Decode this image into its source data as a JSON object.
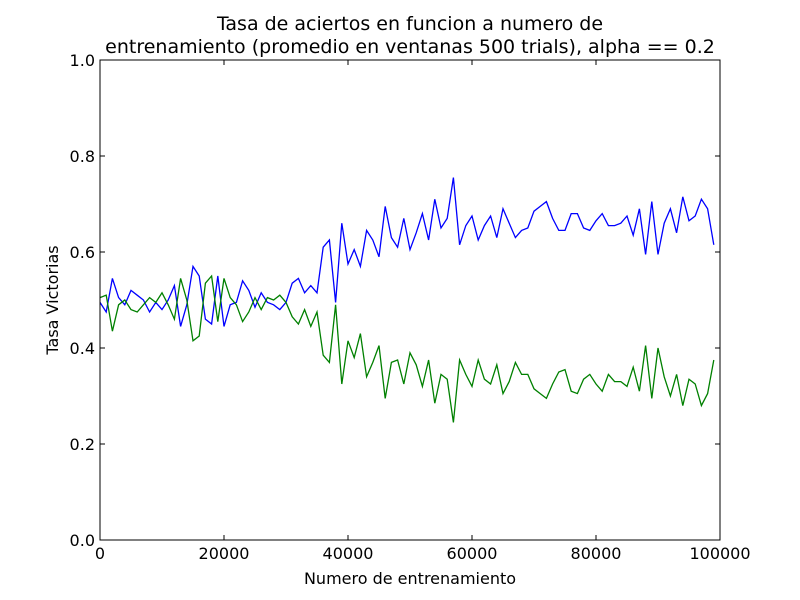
{
  "chart_data": {
    "type": "line",
    "title_lines": [
      "Tasa de aciertos en funcion a numero de",
      "entrenamiento (promedio en ventanas 500 trials), alpha == 0.2"
    ],
    "xlabel": "Numero de entrenamiento",
    "ylabel": "Tasa Victorias",
    "xlim": [
      0,
      100000
    ],
    "ylim": [
      0.0,
      1.0
    ],
    "xticks": [
      0,
      20000,
      40000,
      60000,
      80000,
      100000
    ],
    "xtick_labels": [
      "0",
      "20000",
      "40000",
      "60000",
      "80000",
      "100000"
    ],
    "yticks": [
      0.0,
      0.2,
      0.4,
      0.6,
      0.8,
      1.0
    ],
    "ytick_labels": [
      "0.0",
      "0.2",
      "0.4",
      "0.6",
      "0.8",
      "1.0"
    ],
    "grid": false,
    "x_start": 0,
    "x_step": 1000,
    "series": [
      {
        "color": "#0000ff",
        "values": [
          0.495,
          0.475,
          0.545,
          0.505,
          0.49,
          0.52,
          0.51,
          0.5,
          0.475,
          0.495,
          0.48,
          0.5,
          0.53,
          0.445,
          0.49,
          0.57,
          0.55,
          0.46,
          0.45,
          0.55,
          0.445,
          0.49,
          0.495,
          0.54,
          0.52,
          0.485,
          0.515,
          0.495,
          0.49,
          0.48,
          0.495,
          0.535,
          0.545,
          0.515,
          0.53,
          0.515,
          0.61,
          0.625,
          0.495,
          0.66,
          0.575,
          0.605,
          0.57,
          0.645,
          0.625,
          0.59,
          0.695,
          0.63,
          0.61,
          0.67,
          0.605,
          0.64,
          0.68,
          0.625,
          0.71,
          0.65,
          0.67,
          0.755,
          0.615,
          0.655,
          0.675,
          0.625,
          0.655,
          0.675,
          0.63,
          0.69,
          0.66,
          0.63,
          0.645,
          0.65,
          0.685,
          0.695,
          0.705,
          0.67,
          0.645,
          0.645,
          0.68,
          0.68,
          0.65,
          0.645,
          0.665,
          0.68,
          0.655,
          0.655,
          0.66,
          0.675,
          0.635,
          0.69,
          0.595,
          0.705,
          0.595,
          0.66,
          0.69,
          0.64,
          0.715,
          0.665,
          0.675,
          0.71,
          0.69,
          0.615
        ]
      },
      {
        "color": "#008000",
        "values": [
          0.505,
          0.51,
          0.435,
          0.49,
          0.5,
          0.48,
          0.475,
          0.49,
          0.505,
          0.495,
          0.515,
          0.49,
          0.46,
          0.545,
          0.5,
          0.415,
          0.425,
          0.535,
          0.55,
          0.455,
          0.545,
          0.505,
          0.49,
          0.455,
          0.475,
          0.505,
          0.48,
          0.505,
          0.5,
          0.51,
          0.495,
          0.465,
          0.45,
          0.48,
          0.445,
          0.475,
          0.385,
          0.37,
          0.49,
          0.325,
          0.415,
          0.38,
          0.43,
          0.34,
          0.37,
          0.405,
          0.295,
          0.37,
          0.375,
          0.325,
          0.39,
          0.365,
          0.32,
          0.375,
          0.285,
          0.345,
          0.335,
          0.245,
          0.375,
          0.345,
          0.32,
          0.375,
          0.335,
          0.325,
          0.365,
          0.305,
          0.33,
          0.37,
          0.345,
          0.345,
          0.315,
          0.305,
          0.295,
          0.325,
          0.35,
          0.355,
          0.31,
          0.305,
          0.335,
          0.345,
          0.325,
          0.31,
          0.345,
          0.33,
          0.33,
          0.32,
          0.36,
          0.31,
          0.405,
          0.295,
          0.4,
          0.34,
          0.3,
          0.345,
          0.28,
          0.335,
          0.325,
          0.28,
          0.305,
          0.375
        ]
      }
    ]
  }
}
